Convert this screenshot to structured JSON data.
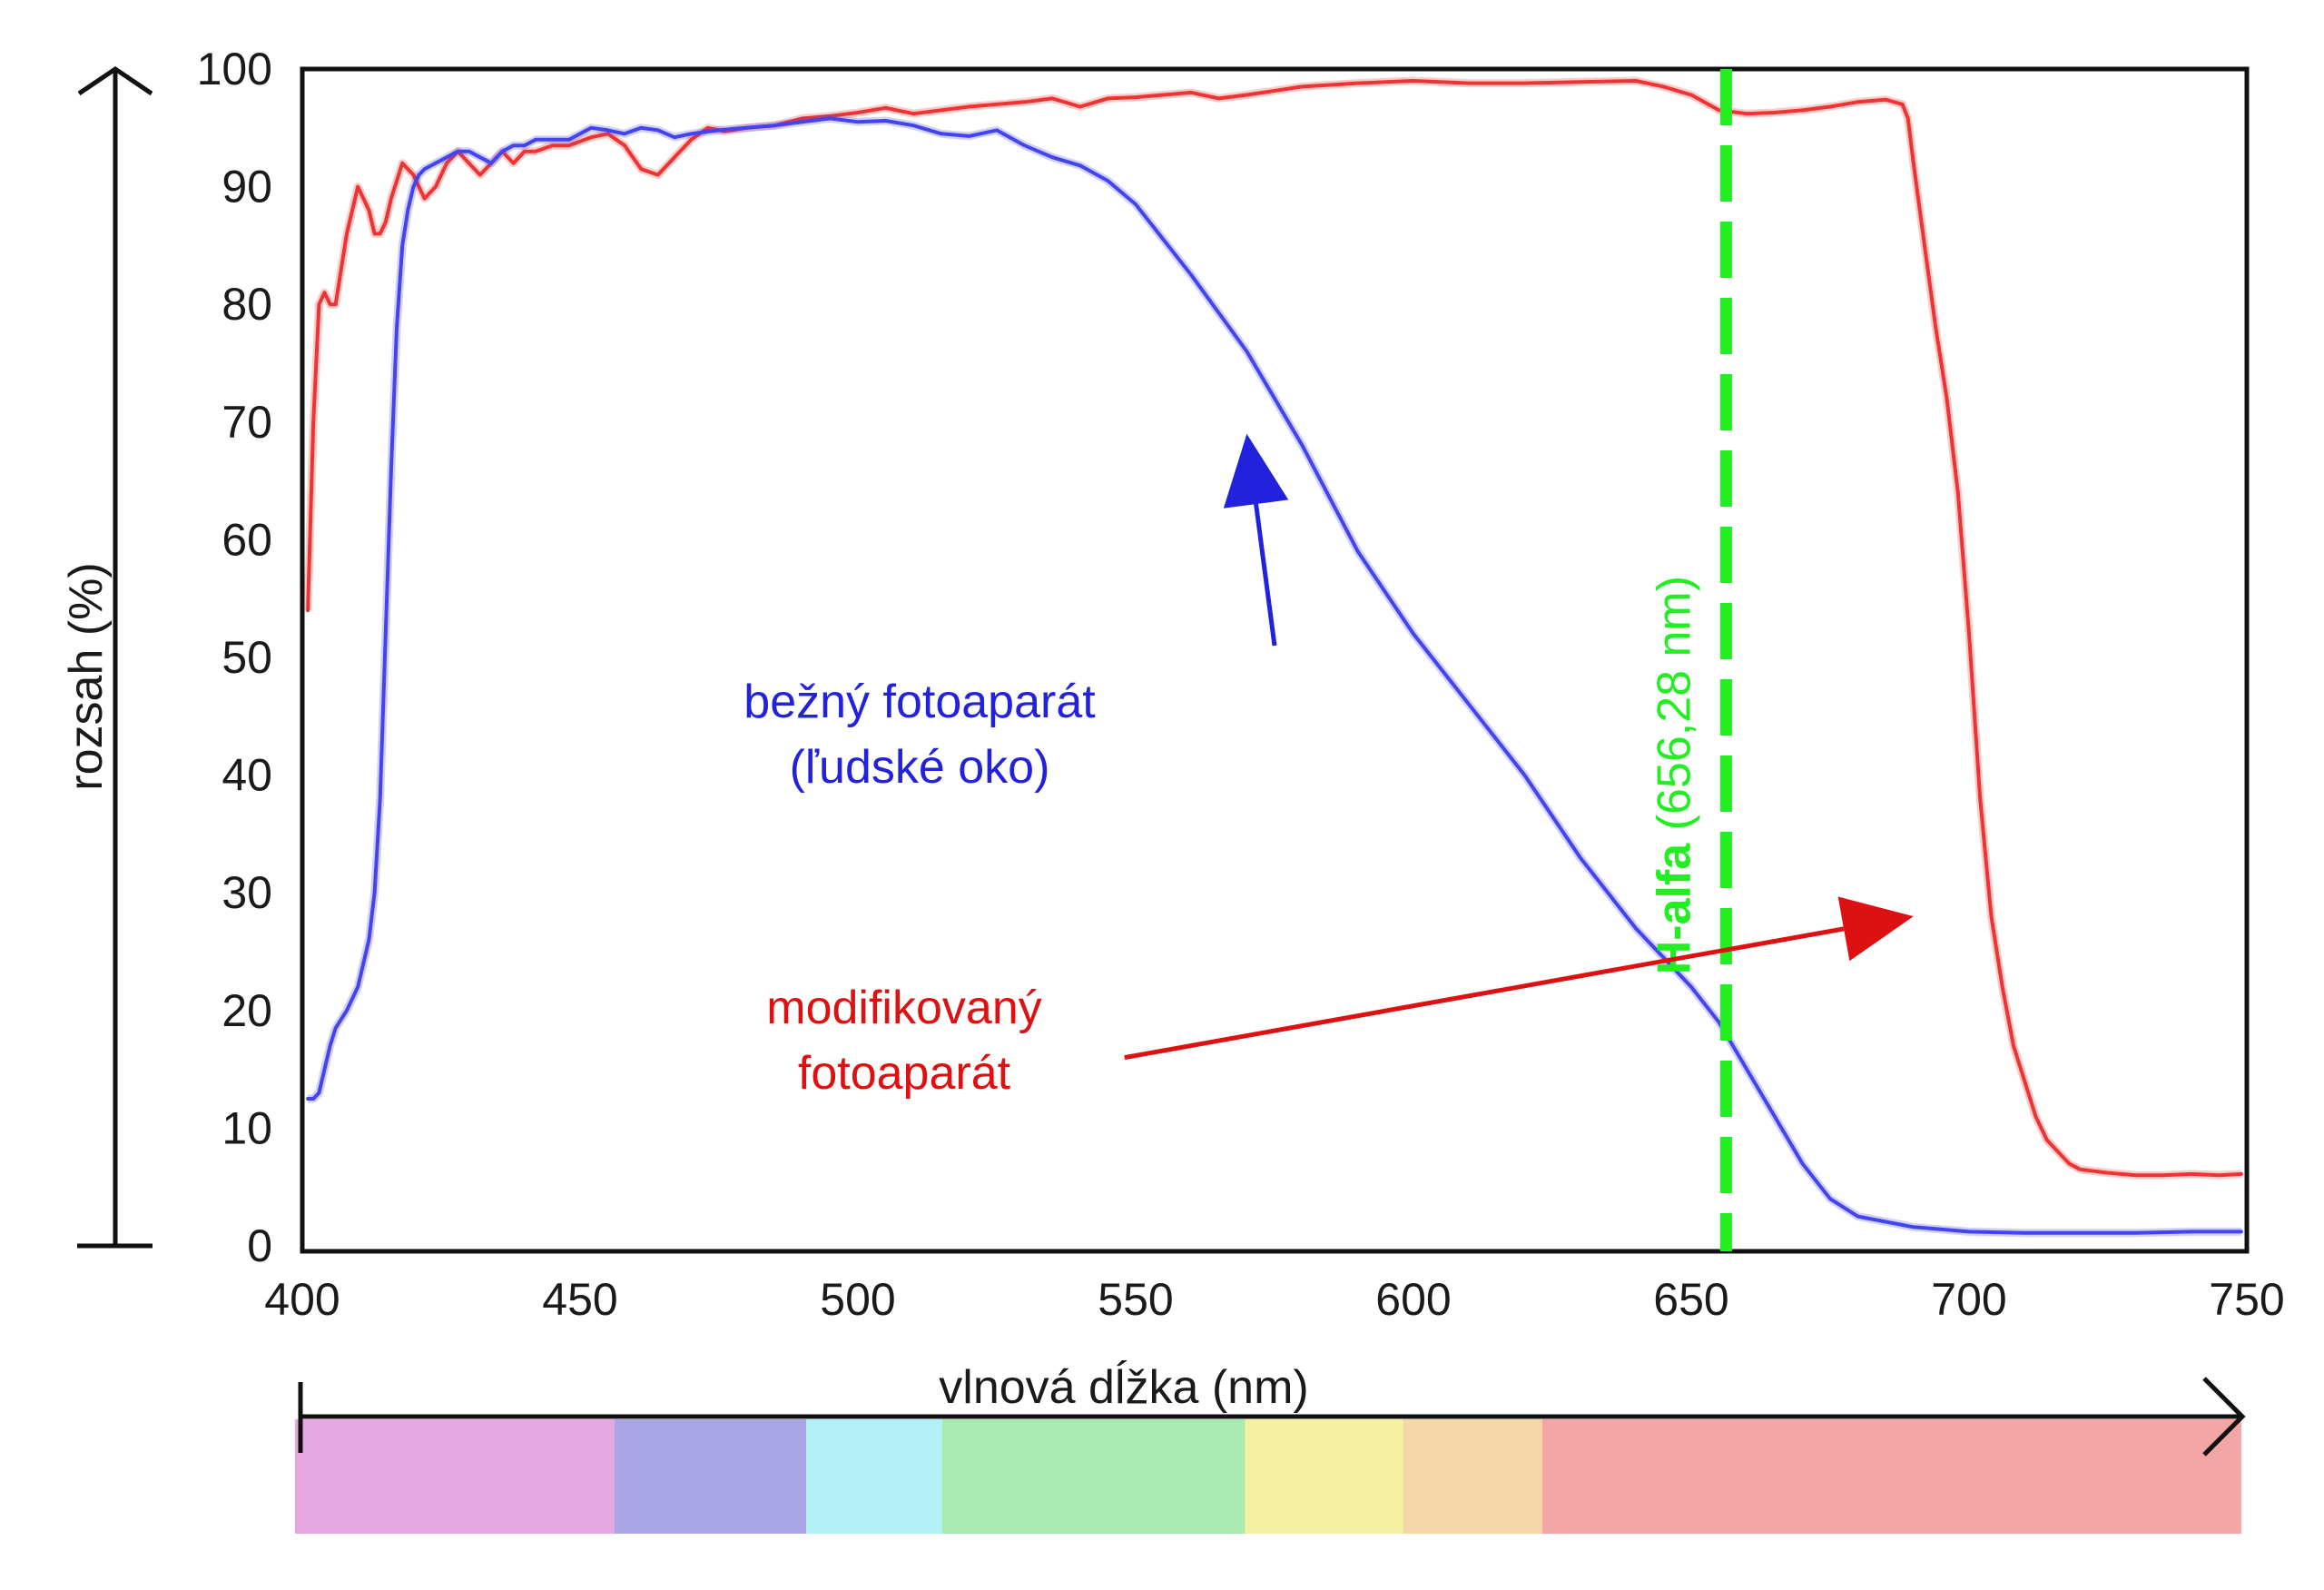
{
  "chart_data": {
    "type": "line",
    "xlabel": "vlnová dĺžka (nm)",
    "ylabel": "rozsah (%)",
    "xlim": [
      400,
      750
    ],
    "ylim": [
      0,
      100
    ],
    "x_ticks": [
      400,
      450,
      500,
      550,
      600,
      650,
      700,
      750
    ],
    "y_ticks": [
      0,
      10,
      20,
      30,
      40,
      50,
      60,
      70,
      80,
      90,
      100
    ],
    "grid": false,
    "series": [
      {
        "name": "modifikovaný fotoaparát",
        "color": "#ee3333",
        "x": [
          401,
          402,
          403,
          404,
          405,
          406,
          407,
          408,
          409,
          410,
          411,
          412,
          413,
          414,
          415,
          416,
          418,
          420,
          422,
          424,
          426,
          428,
          430,
          432,
          434,
          436,
          438,
          440,
          442,
          445,
          448,
          452,
          455,
          458,
          461,
          464,
          467,
          470,
          473,
          476,
          480,
          485,
          490,
          495,
          500,
          505,
          510,
          520,
          530,
          535,
          540,
          545,
          550,
          555,
          560,
          565,
          570,
          580,
          590,
          600,
          610,
          620,
          630,
          640,
          645,
          650,
          655,
          660,
          665,
          670,
          675,
          680,
          685,
          688,
          689,
          690,
          692,
          694,
          696,
          698,
          700,
          702,
          704,
          706,
          708,
          710,
          712,
          714,
          716,
          718,
          720,
          725,
          730,
          735,
          740,
          745,
          749
        ],
        "values": [
          54,
          70,
          80,
          81,
          80,
          80,
          83,
          86,
          88,
          90,
          89,
          88,
          86,
          86,
          87,
          89,
          92,
          91,
          89,
          90,
          92,
          93,
          92,
          91,
          92,
          93,
          92,
          93,
          93,
          93.5,
          93.5,
          94.2,
          94.5,
          93.5,
          91.5,
          91,
          92.5,
          94,
          95,
          94.7,
          95,
          95.2,
          95.8,
          96,
          96.3,
          96.7,
          96.2,
          96.8,
          97.2,
          97.5,
          96.8,
          97.5,
          97.6,
          97.8,
          98,
          97.5,
          97.8,
          98.5,
          98.8,
          99,
          98.8,
          98.8,
          98.9,
          99,
          98.5,
          97.8,
          96.5,
          96.2,
          96.3,
          96.5,
          96.8,
          97.2,
          97.4,
          97,
          95.8,
          92,
          85,
          78,
          72,
          64,
          52,
          38,
          28,
          22,
          17,
          14,
          11,
          9,
          8,
          7,
          6.5,
          6.2,
          6,
          6,
          6.1,
          6,
          6.1
        ]
      },
      {
        "name": "bežný fotoaparát (ľudské oko)",
        "color": "#4444ee",
        "x": [
          401,
          402,
          403,
          404,
          405,
          406,
          408,
          410,
          411,
          412,
          413,
          414,
          415,
          416,
          417,
          418,
          419,
          420,
          421,
          422,
          424,
          426,
          428,
          430,
          432,
          434,
          436,
          438,
          440,
          442,
          445,
          448,
          450,
          452,
          455,
          458,
          461,
          464,
          467,
          470,
          475,
          480,
          485,
          490,
          495,
          500,
          505,
          510,
          515,
          520,
          525,
          530,
          535,
          540,
          545,
          550,
          560,
          570,
          580,
          590,
          600,
          610,
          620,
          630,
          640,
          650,
          655,
          660,
          665,
          670,
          675,
          680,
          690,
          700,
          710,
          720,
          730,
          740,
          749
        ],
        "values": [
          12.5,
          12.5,
          13,
          15,
          17,
          18.5,
          20,
          22,
          24,
          26,
          30,
          38,
          52,
          66,
          78,
          85,
          88,
          90,
          91,
          91.5,
          92,
          92.5,
          93,
          93,
          92.5,
          92,
          93,
          93.5,
          93.5,
          94,
          94,
          94,
          94.5,
          95,
          94.8,
          94.5,
          95,
          94.8,
          94.2,
          94.5,
          94.8,
          95,
          95.2,
          95.5,
          95.8,
          95.5,
          95.6,
          95.2,
          94.5,
          94.3,
          94.8,
          93.5,
          92.5,
          91.8,
          90.5,
          88.5,
          82.5,
          76,
          68,
          59,
          52,
          46,
          40,
          33,
          27,
          22,
          19,
          15,
          11,
          7,
          4,
          2.5,
          1.6,
          1.2,
          1.1,
          1.1,
          1.1,
          1.2,
          1.2
        ]
      }
    ],
    "reference_line": {
      "x": 656.28,
      "name": "H-alfa",
      "label_suffix": "(656,28 nm)",
      "color": "#22ee22",
      "style": "dashed"
    },
    "annotations": [
      {
        "name": "normal-camera",
        "lines": [
          "bežný fotoaparát",
          "(ľudské oko)"
        ],
        "color": "#2222dd",
        "arrow": {
          "from": [
            575,
            51
          ],
          "to": [
            570,
            69
          ]
        }
      },
      {
        "name": "modified-camera",
        "lines": [
          "modifikovaný",
          "fotoaparát"
        ],
        "color": "#dd1111",
        "arrow": {
          "from": [
            548,
            16
          ],
          "to": [
            690,
            28
          ]
        }
      }
    ],
    "spectrum_band": {
      "colors": [
        "#e6a8e0",
        "#aaa5e4",
        "#b0f0f6",
        "#a8eab2",
        "#f5f0a0",
        "#f5d6a6",
        "#f4a6a6"
      ],
      "boundaries": [
        400,
        457.5,
        492,
        516.5,
        571,
        599.5,
        624.5,
        749
      ]
    }
  }
}
